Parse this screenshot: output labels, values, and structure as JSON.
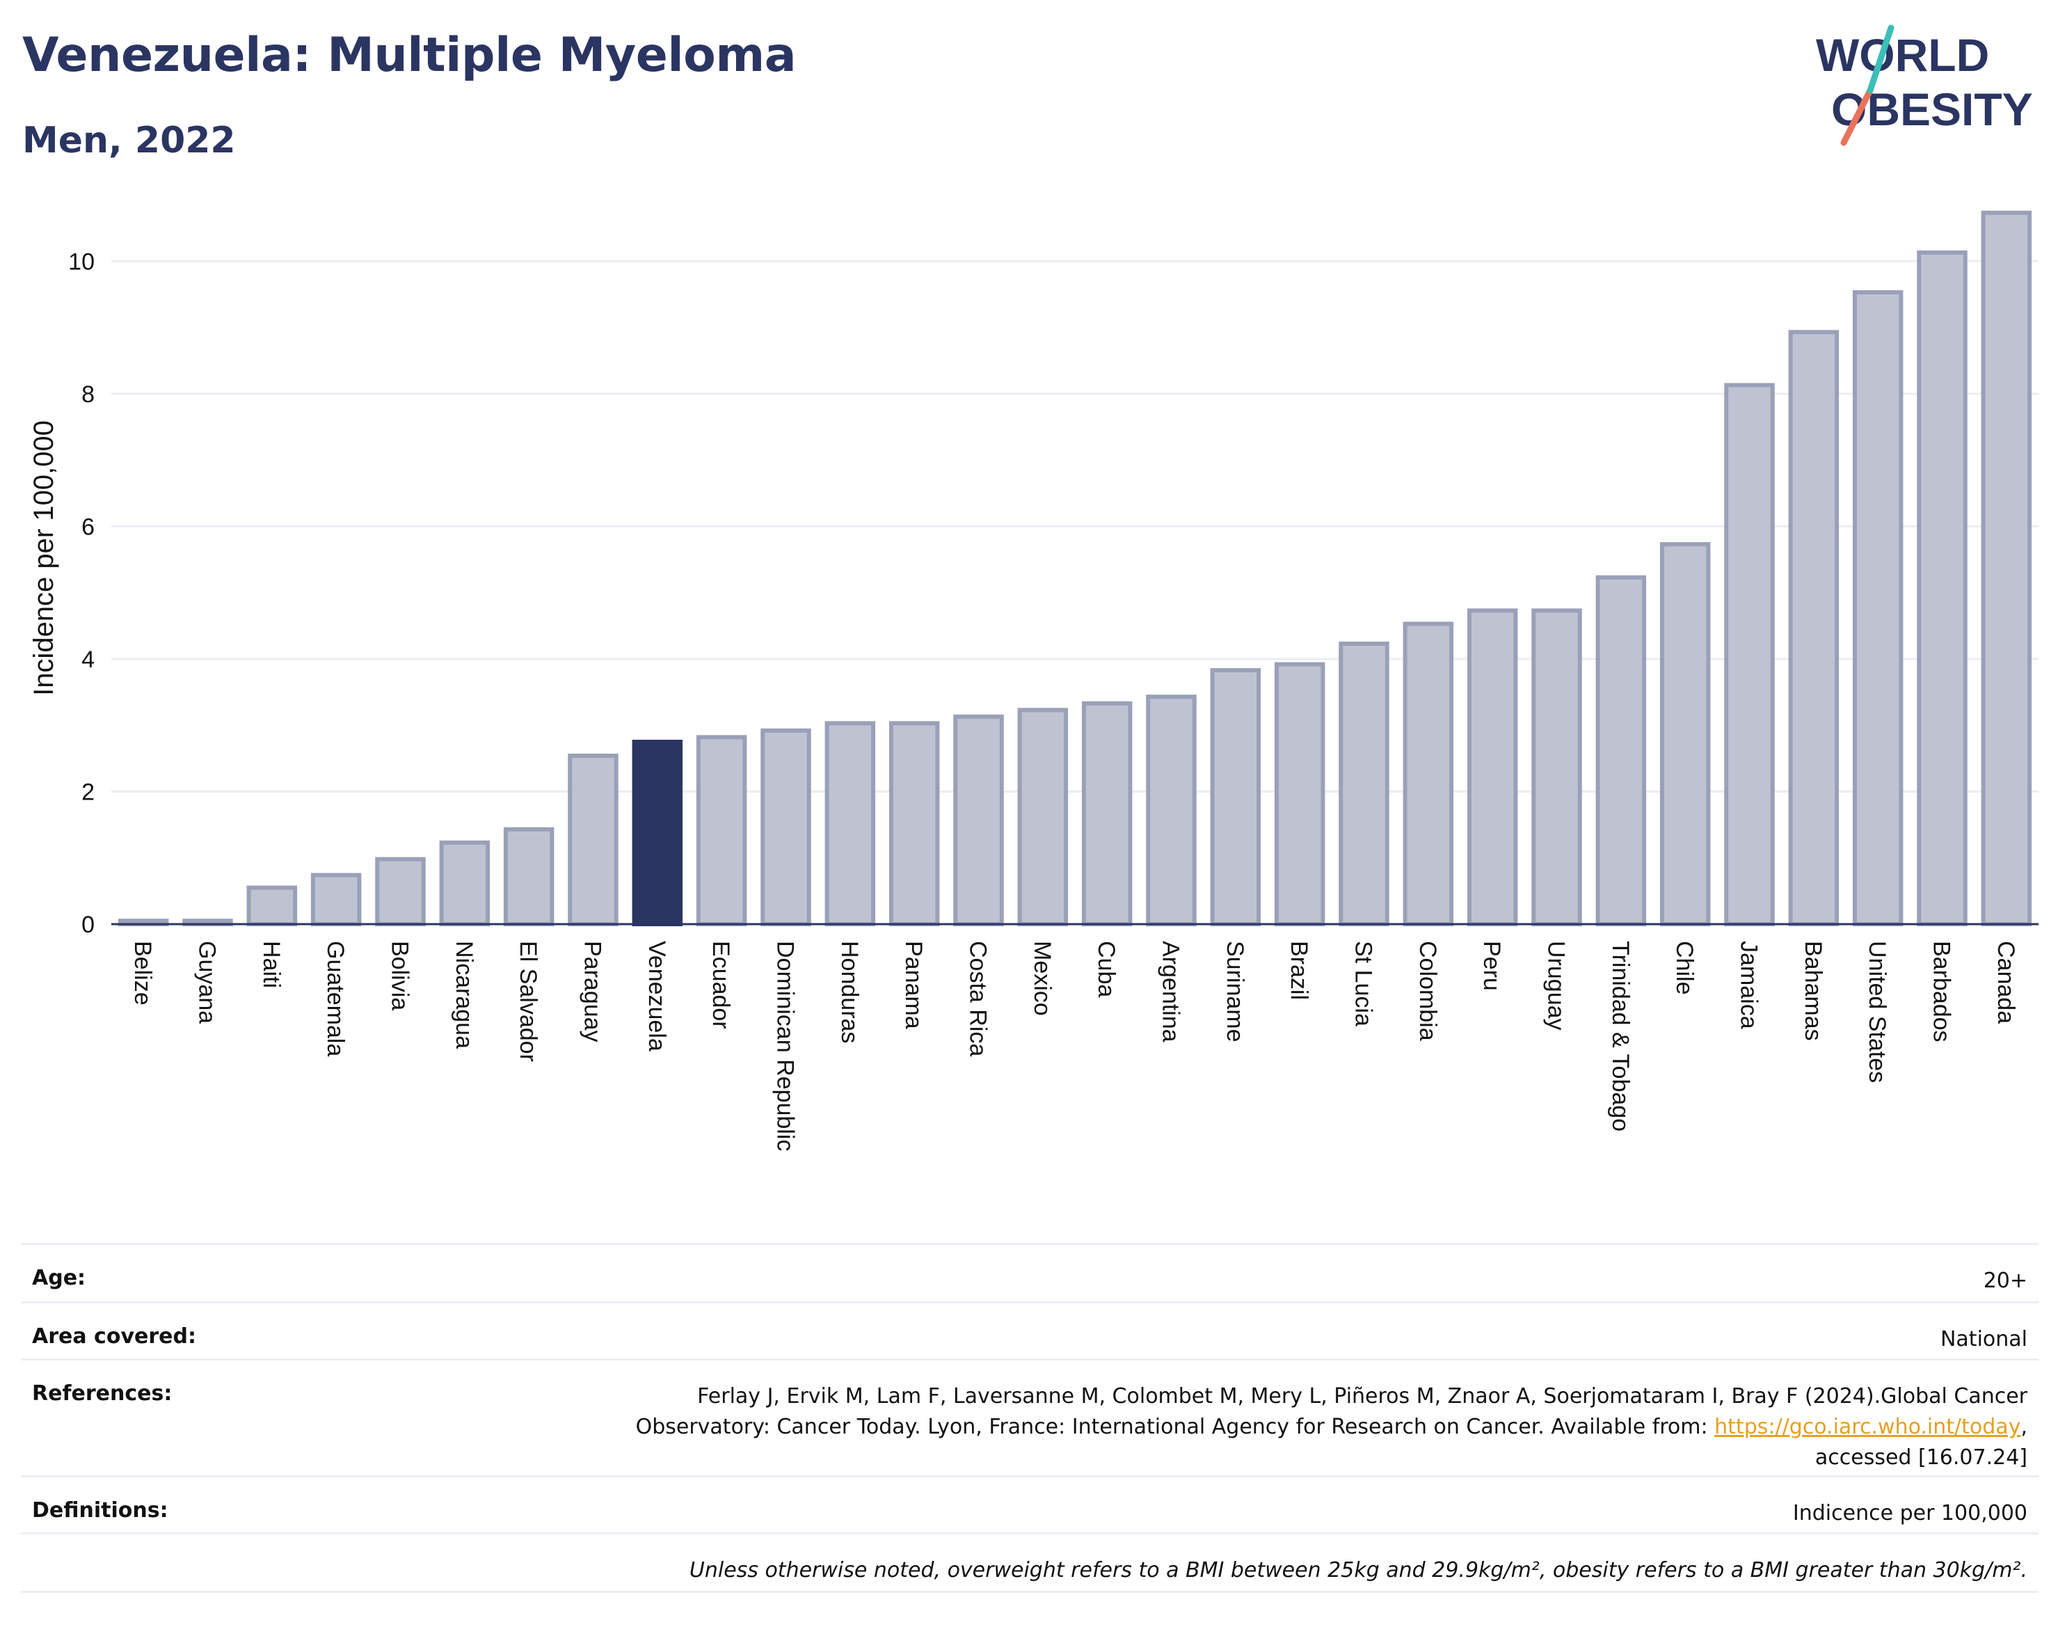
{
  "title": "Venezuela: Multiple Myeloma",
  "subtitle": "Men, 2022",
  "logo": {
    "line1": "WORLD",
    "line2": "OBESITY"
  },
  "colors": {
    "title": "#2b3562",
    "bar": "#bfc3d1",
    "bar_edge": "#9aa0b8",
    "highlight": "#2b3562",
    "grid": "#ebedf2",
    "axis": "#2b3562",
    "link": "#e7a020"
  },
  "chart_data": {
    "type": "bar",
    "title": "Venezuela: Multiple Myeloma",
    "subtitle": "Men, 2022",
    "ylabel": "Incidence per 100,000",
    "xlabel": "",
    "ylim": [
      0,
      11
    ],
    "yticks": [
      0,
      2,
      4,
      6,
      8,
      10
    ],
    "grid": true,
    "highlight": "Venezuela",
    "categories": [
      "Belize",
      "Guyana",
      "Haiti",
      "Guatemala",
      "Bolivia",
      "Nicaragua",
      "El Salvador",
      "Paraguay",
      "Venezuela",
      "Ecuador",
      "Dominican Republic",
      "Honduras",
      "Panama",
      "Costa Rica",
      "Mexico",
      "Cuba",
      "Argentina",
      "Suriname",
      "Brazil",
      "St Lucia",
      "Colombia",
      "Peru",
      "Uruguay",
      "Trinidad & Tobago",
      "Chile",
      "Jamaica",
      "Bahamas",
      "United States",
      "Barbados",
      "Canada"
    ],
    "values": [
      0.05,
      0.05,
      0.55,
      0.74,
      0.98,
      1.23,
      1.43,
      2.54,
      2.75,
      2.82,
      2.92,
      3.03,
      3.03,
      3.13,
      3.23,
      3.33,
      3.43,
      3.83,
      3.92,
      4.23,
      4.53,
      4.73,
      4.73,
      5.23,
      5.73,
      8.13,
      8.93,
      9.53,
      10.13,
      10.73
    ]
  },
  "meta": {
    "age_label": "Age:",
    "age_value": "20+",
    "area_label": "Area covered:",
    "area_value": "National",
    "references_label": "References:",
    "references_line1": "Ferlay J, Ervik M, Lam F, Laversanne M, Colombet M, Mery L, Piñeros M, Znaor A, Soerjomataram I, Bray F (2024).Global Cancer",
    "references_line2_pre": "Observatory: Cancer Today. Lyon, France: International Agency for Research on Cancer. Available from: ",
    "references_link": "https://gco.iarc.who.int/today",
    "references_line2_post": ",",
    "references_line3": "accessed [16.07.24]",
    "definitions_label": "Definitions:",
    "definitions_value": "Indicence per 100,000",
    "note": "Unless otherwise noted, overweight refers to a BMI between 25kg and 29.9kg/m², obesity refers to a BMI greater than 30kg/m²."
  }
}
